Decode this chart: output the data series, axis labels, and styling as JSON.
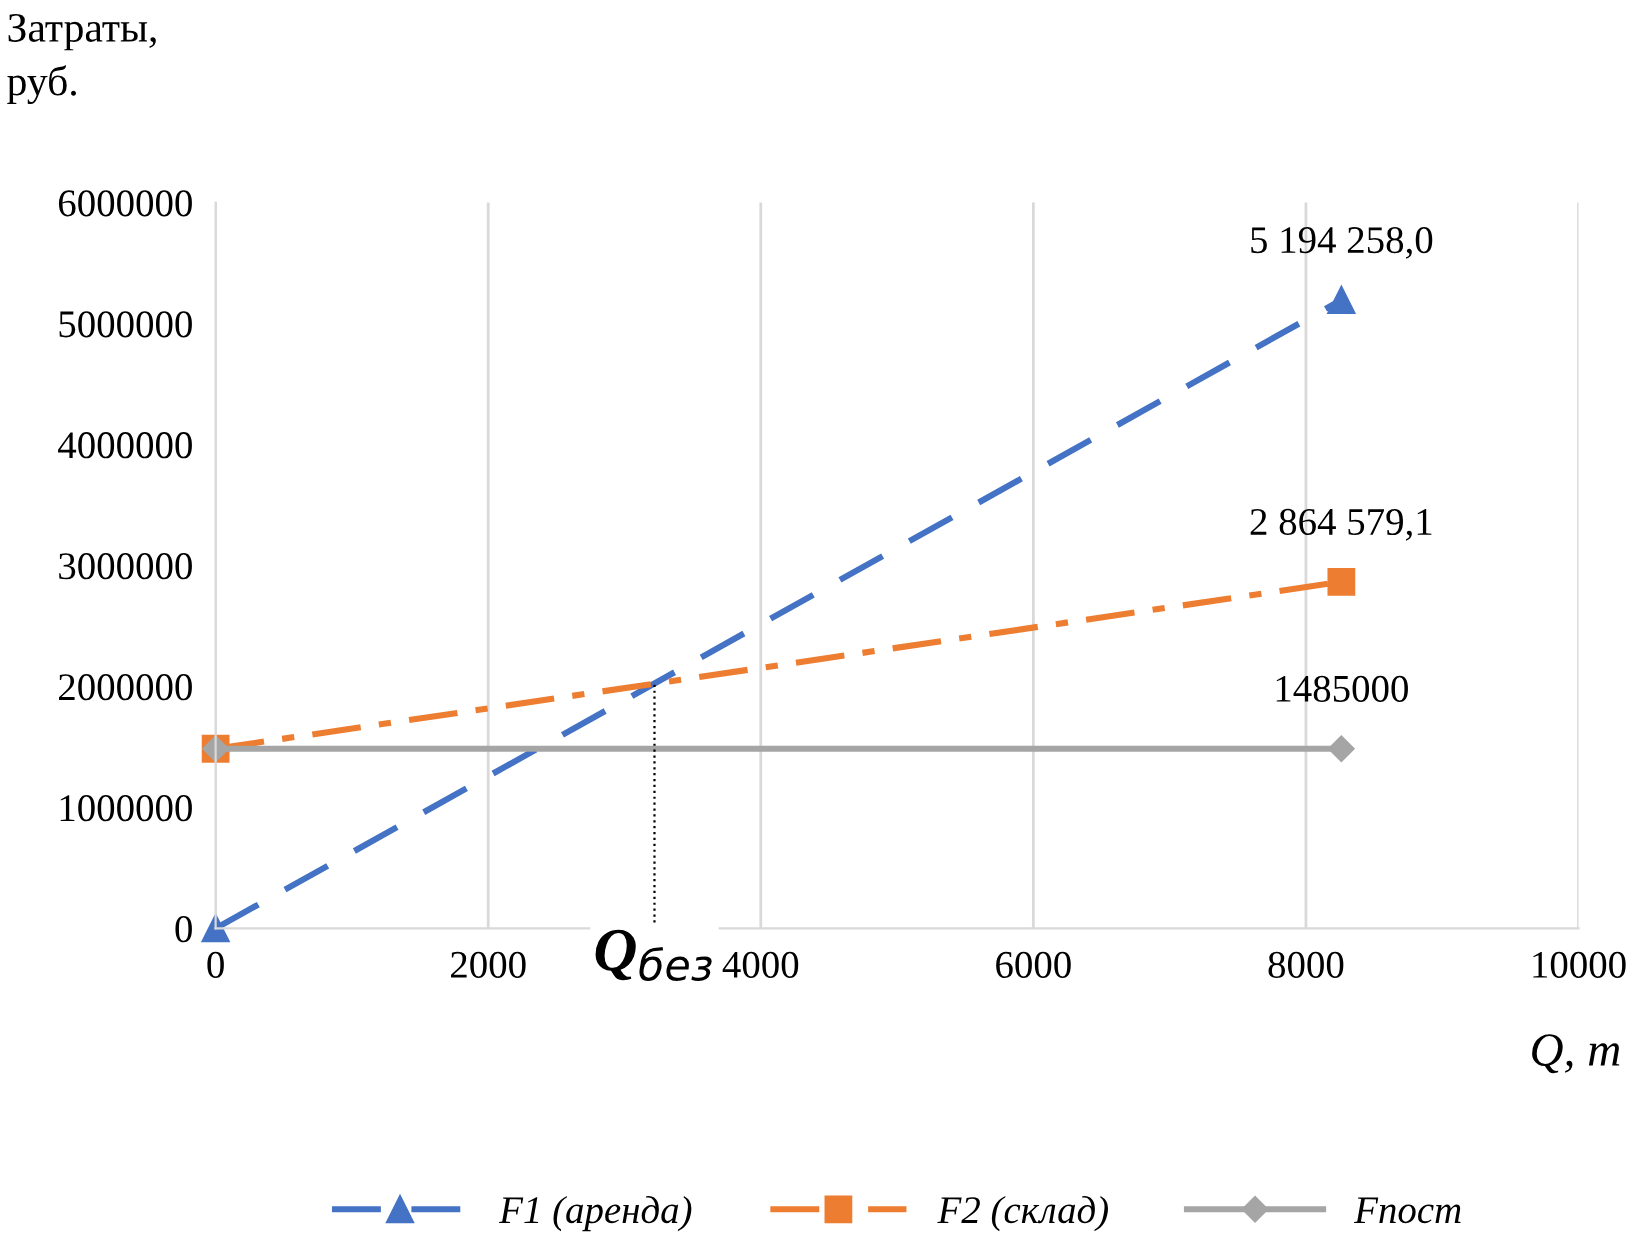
{
  "chart_data": {
    "type": "line",
    "ylabel": "Затраты,\nруб.",
    "xlabel": "Q, т",
    "x": [
      0,
      8260
    ],
    "xlim": [
      0,
      10000
    ],
    "xticks": [
      0,
      2000,
      4000,
      6000,
      8000,
      10000
    ],
    "ylim": [
      0,
      6000000
    ],
    "yticks": [
      0,
      1000000,
      2000000,
      3000000,
      4000000,
      5000000,
      6000000
    ],
    "grid": "x",
    "legend": "bottom",
    "series": [
      {
        "name": "F1 (аренда)",
        "color": "#4472c4",
        "values": [
          0,
          5194258.0
        ],
        "marker": "triangle",
        "line_style": "dashed",
        "value_labels": [
          null,
          "5 194 258,0"
        ]
      },
      {
        "name": "F2 (склад)",
        "color": "#ed7d31",
        "values": [
          1485000,
          2864579.1
        ],
        "marker": "square",
        "line_style": "dashdot",
        "value_labels": [
          null,
          "2 864 579,1"
        ]
      },
      {
        "name": "Fпост",
        "color": "#a5a5a5",
        "values": [
          1485000,
          1485000
        ],
        "marker": "diamond",
        "line_style": "solid",
        "value_labels": [
          null,
          "1485000"
        ]
      }
    ],
    "ref_lines": [
      {
        "axis": "x",
        "value": 3220,
        "label": "Q$_{без}$",
        "color": "#000000",
        "line_style": "dotted"
      }
    ]
  }
}
